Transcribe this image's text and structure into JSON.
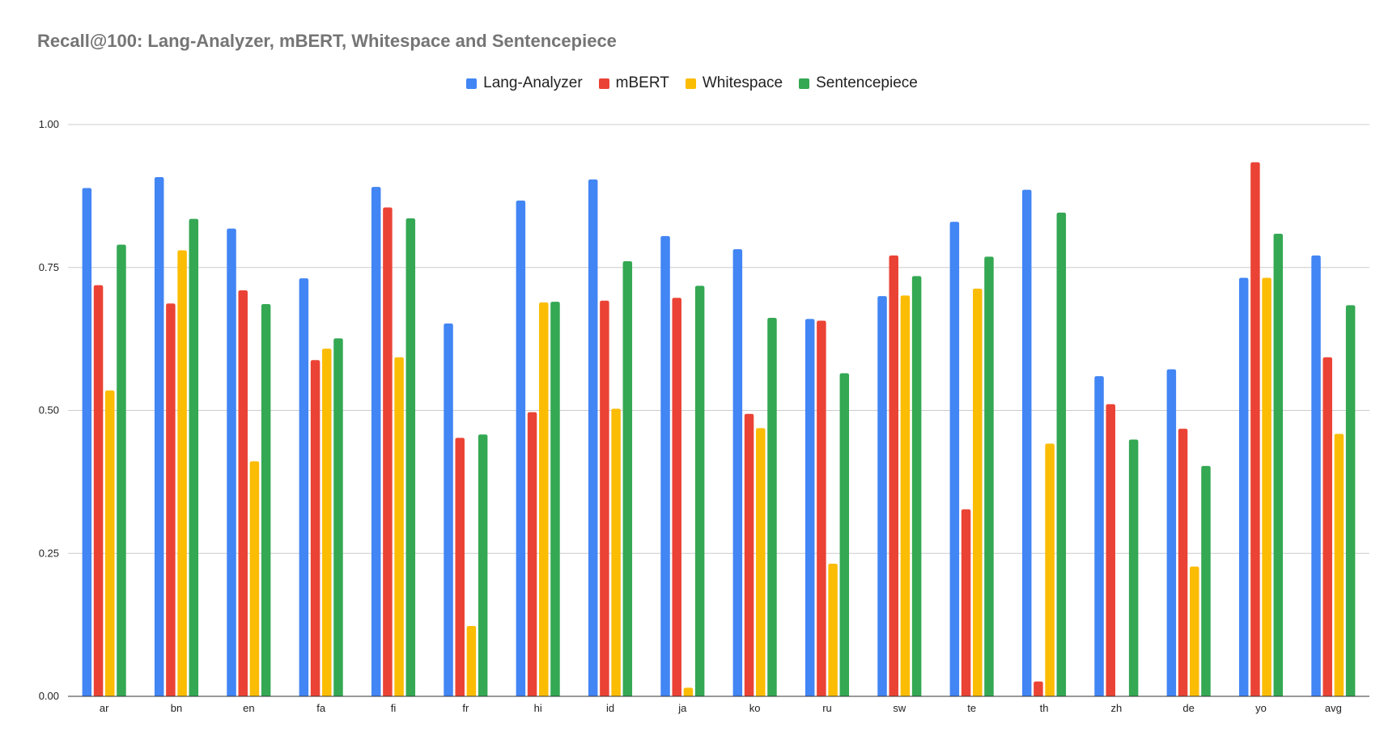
{
  "chart_data": {
    "type": "bar",
    "title": "Recall@100: Lang-Analyzer, mBERT, Whitespace and Sentencepiece",
    "xlabel": "",
    "ylabel": "",
    "ylim": [
      0,
      1
    ],
    "yticks": [
      "0.00",
      "0.25",
      "0.50",
      "0.75",
      "1.00"
    ],
    "grid": true,
    "legend_position": "top-center",
    "categories": [
      "ar",
      "bn",
      "en",
      "fa",
      "fi",
      "fr",
      "hi",
      "id",
      "ja",
      "ko",
      "ru",
      "sw",
      "te",
      "th",
      "zh",
      "de",
      "yo",
      "avg"
    ],
    "series": [
      {
        "name": "Lang-Analyzer",
        "color": "#4285F4",
        "values": [
          0.889,
          0.908,
          0.818,
          0.731,
          0.891,
          0.652,
          0.867,
          0.904,
          0.805,
          0.782,
          0.66,
          0.7,
          0.83,
          0.886,
          0.56,
          0.572,
          0.732,
          0.771
        ]
      },
      {
        "name": "mBERT",
        "color": "#EA4335",
        "values": [
          0.719,
          0.687,
          0.71,
          0.588,
          0.855,
          0.452,
          0.497,
          0.692,
          0.697,
          0.494,
          0.657,
          0.771,
          0.327,
          0.026,
          0.511,
          0.468,
          0.934,
          0.593
        ]
      },
      {
        "name": "Whitespace",
        "color": "#FBBC04",
        "values": [
          0.535,
          0.78,
          0.411,
          0.608,
          0.593,
          0.123,
          0.689,
          0.503,
          0.015,
          0.469,
          0.232,
          0.701,
          0.713,
          0.442,
          0.0,
          0.227,
          0.732,
          0.459
        ]
      },
      {
        "name": "Sentencepiece",
        "color": "#34A853",
        "values": [
          0.79,
          0.835,
          0.686,
          0.626,
          0.836,
          0.458,
          0.69,
          0.761,
          0.718,
          0.662,
          0.565,
          0.735,
          0.769,
          0.846,
          0.449,
          0.403,
          0.809,
          0.684
        ]
      }
    ]
  }
}
